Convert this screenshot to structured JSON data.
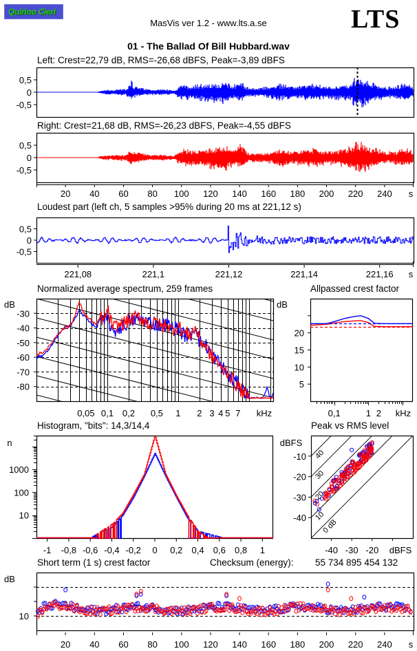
{
  "header": {
    "logo_text": "Quirino Cieri",
    "app_title": "MasVis ver 1.2 - www.lts.a.se",
    "brand": "LTS",
    "file_title": "01 - The Ballad Of Bill Hubbard.wav"
  },
  "colors": {
    "left": "#0000ff",
    "right": "#ff0000",
    "logo_bg": "#4a4fd0",
    "logo_text": "#27c227"
  },
  "chart_data": [
    {
      "id": "left-waveform",
      "type": "area",
      "title": "Left: Crest=22,79 dB, RMS=-26,68 dBFS, Peak=-3,89 dBFS",
      "xlabel": "s",
      "ylabel": "",
      "xlim": [
        0,
        260
      ],
      "ylim": [
        -1,
        1
      ],
      "yticks": [
        "0,5",
        "0",
        "-0,5"
      ],
      "yticks_values": [
        0.5,
        0,
        -0.5
      ],
      "marker_at_s": 221.12,
      "envelope": {
        "x": [
          0,
          42,
          46,
          55,
          62,
          65,
          67,
          72,
          80,
          88,
          95,
          100,
          106,
          112,
          120,
          126,
          131,
          136,
          140,
          145,
          152,
          160,
          168,
          176,
          184,
          192,
          200,
          208,
          216,
          220,
          224,
          230,
          236,
          242,
          248,
          252,
          256,
          260
        ],
        "upper": [
          0.02,
          0.02,
          0.08,
          0.1,
          0.12,
          0.45,
          0.25,
          0.18,
          0.1,
          0.12,
          0.06,
          0.3,
          0.25,
          0.28,
          0.32,
          0.35,
          0.4,
          0.25,
          0.45,
          0.18,
          0.16,
          0.2,
          0.3,
          0.22,
          0.28,
          0.3,
          0.22,
          0.25,
          0.3,
          0.55,
          0.5,
          0.35,
          0.28,
          0.2,
          0.22,
          0.3,
          0.28,
          0.2
        ],
        "lower": [
          -0.02,
          -0.02,
          -0.08,
          -0.1,
          -0.12,
          -0.3,
          -0.2,
          -0.15,
          -0.1,
          -0.12,
          -0.06,
          -0.3,
          -0.25,
          -0.3,
          -0.35,
          -0.4,
          -0.42,
          -0.25,
          -0.35,
          -0.18,
          -0.16,
          -0.2,
          -0.3,
          -0.22,
          -0.28,
          -0.3,
          -0.22,
          -0.28,
          -0.3,
          -0.55,
          -0.55,
          -0.35,
          -0.3,
          -0.2,
          -0.25,
          -0.3,
          -0.3,
          -0.2
        ]
      }
    },
    {
      "id": "right-waveform",
      "type": "area",
      "title": "Right: Crest=21,68 dB, RMS=-26,23 dBFS, Peak=-4,55 dBFS",
      "xlabel": "s",
      "ylabel": "",
      "xlim": [
        0,
        260
      ],
      "ylim": [
        -1,
        1
      ],
      "yticks": [
        "0,5",
        "0",
        "-0,5"
      ],
      "yticks_values": [
        0.5,
        0,
        -0.5
      ],
      "xticks": [
        "20",
        "40",
        "60",
        "80",
        "100",
        "120",
        "140",
        "160",
        "180",
        "200",
        "220",
        "240"
      ],
      "xticks_values": [
        20,
        40,
        60,
        80,
        100,
        120,
        140,
        160,
        180,
        200,
        220,
        240
      ],
      "envelope": {
        "x": [
          0,
          42,
          46,
          55,
          62,
          65,
          67,
          72,
          80,
          88,
          95,
          100,
          106,
          112,
          120,
          126,
          131,
          136,
          140,
          145,
          152,
          160,
          168,
          176,
          184,
          192,
          200,
          208,
          216,
          220,
          224,
          230,
          236,
          242,
          248,
          252,
          256,
          260
        ],
        "upper": [
          0.02,
          0.02,
          0.08,
          0.1,
          0.12,
          0.35,
          0.25,
          0.18,
          0.1,
          0.12,
          0.06,
          0.32,
          0.28,
          0.3,
          0.38,
          0.42,
          0.48,
          0.3,
          0.5,
          0.2,
          0.18,
          0.2,
          0.35,
          0.25,
          0.3,
          0.35,
          0.25,
          0.3,
          0.4,
          0.55,
          0.55,
          0.4,
          0.3,
          0.22,
          0.25,
          0.3,
          0.32,
          0.22
        ],
        "lower": [
          -0.02,
          -0.02,
          -0.08,
          -0.1,
          -0.12,
          -0.28,
          -0.2,
          -0.15,
          -0.1,
          -0.12,
          -0.06,
          -0.32,
          -0.28,
          -0.3,
          -0.4,
          -0.42,
          -0.45,
          -0.3,
          -0.4,
          -0.2,
          -0.18,
          -0.2,
          -0.35,
          -0.25,
          -0.3,
          -0.35,
          -0.25,
          -0.3,
          -0.4,
          -0.55,
          -0.6,
          -0.4,
          -0.3,
          -0.22,
          -0.25,
          -0.32,
          -0.32,
          -0.22
        ]
      }
    },
    {
      "id": "loudest-part",
      "type": "line",
      "title": "Loudest part (left  ch, 5 samples >95% during 20 ms at 221,12 s)",
      "xlabel": "s",
      "ylabel": "",
      "xlim": [
        221.069,
        221.169
      ],
      "ylim": [
        -1,
        1
      ],
      "yticks": [
        "0,5",
        "0",
        "-0,5"
      ],
      "yticks_values": [
        0.5,
        0,
        -0.5
      ],
      "xticks": [
        "221,08",
        "221,1",
        "221,12",
        "221,14",
        "221,16"
      ],
      "xticks_values": [
        221.08,
        221.1,
        221.12,
        221.14,
        221.16
      ],
      "features": {
        "quiet_amplitude": 0.12,
        "transient_at": 221.1198,
        "transient_peak": 0.62,
        "transient_trough": -0.55,
        "post_amplitude": 0.2
      }
    },
    {
      "id": "average-spectrum",
      "type": "line",
      "title": "Normalized average spectrum, 259 frames",
      "xlabel": "kHz",
      "ylabel": "dB",
      "xscale": "log",
      "xlim_khz": [
        0.01,
        22
      ],
      "ylim": [
        -90,
        -20
      ],
      "yticks": [
        "-30",
        "-40",
        "-50",
        "-60",
        "-70",
        "-80"
      ],
      "yticks_values": [
        -30,
        -40,
        -50,
        -60,
        -70,
        -80
      ],
      "xticks": [
        "0,05",
        "0,1",
        "0,2",
        "0,5",
        "1",
        "2",
        "3",
        "4",
        "5",
        "7",
        "kHz"
      ],
      "xticks_values": [
        0.05,
        0.1,
        0.2,
        0.5,
        1,
        2,
        3,
        4,
        5,
        7
      ],
      "series": [
        {
          "name": "left",
          "x": [
            0.01,
            0.012,
            0.015,
            0.02,
            0.025,
            0.03,
            0.035,
            0.04,
            0.045,
            0.05,
            0.06,
            0.07,
            0.08,
            0.09,
            0.1,
            0.12,
            0.15,
            0.2,
            0.25,
            0.3,
            0.4,
            0.5,
            0.6,
            0.7,
            0.8,
            1.0,
            1.2,
            1.5,
            1.8,
            2.0,
            2.5,
            3.0,
            3.5,
            4.0,
            5.0,
            6.0,
            7.0,
            8.0,
            9.0,
            10,
            14,
            16,
            18,
            20,
            22
          ],
          "y": [
            -60,
            -59,
            -55,
            -45,
            -40,
            -38,
            -34,
            -28,
            -31,
            -33,
            -37,
            -40,
            -33,
            -37,
            -33,
            -43,
            -40,
            -36,
            -34,
            -34,
            -36,
            -38,
            -38,
            -37,
            -40,
            -40,
            -45,
            -45,
            -38,
            -50,
            -52,
            -58,
            -62,
            -65,
            -72,
            -76,
            -78,
            -82,
            -84,
            -88,
            -88,
            -88,
            -81,
            -88,
            -85
          ]
        },
        {
          "name": "right",
          "x": [
            0.01,
            0.012,
            0.015,
            0.02,
            0.025,
            0.03,
            0.035,
            0.04,
            0.045,
            0.05,
            0.06,
            0.07,
            0.08,
            0.09,
            0.1,
            0.12,
            0.15,
            0.2,
            0.25,
            0.3,
            0.4,
            0.5,
            0.6,
            0.7,
            0.8,
            1.0,
            1.2,
            1.5,
            1.8,
            2.0,
            2.5,
            3.0,
            3.5,
            4.0,
            5.0,
            6.0,
            7.0,
            8.0,
            9.0,
            10,
            14,
            16,
            18,
            20,
            22
          ],
          "y": [
            -58,
            -57,
            -53,
            -44,
            -40,
            -38,
            -32,
            -22,
            -28,
            -32,
            -35,
            -38,
            -32,
            -36,
            -27,
            -40,
            -38,
            -35,
            -33,
            -33,
            -38,
            -36,
            -40,
            -36,
            -42,
            -38,
            -44,
            -44,
            -40,
            -48,
            -53,
            -60,
            -62,
            -68,
            -70,
            -76,
            -80,
            -83,
            -86,
            -88,
            -88,
            -88,
            -88,
            -88,
            -88
          ]
        }
      ]
    },
    {
      "id": "allpassed-crest-factor",
      "type": "line",
      "title": "Allpassed crest factor",
      "xlabel": "kHz",
      "ylabel": "dB",
      "xscale": "log",
      "xlim_khz": [
        0.02,
        20
      ],
      "ylim": [
        0,
        30
      ],
      "yticks": [
        "20",
        "15",
        "10",
        "5"
      ],
      "yticks_values": [
        20,
        15,
        10,
        5
      ],
      "xticks": [
        "0,1",
        "1",
        "2",
        "kHz"
      ],
      "xticks_values": [
        0.1,
        1,
        2
      ],
      "series": [
        {
          "name": "left",
          "x": [
            0.02,
            0.06,
            0.1,
            0.2,
            0.4,
            0.6,
            1.0,
            1.5,
            3,
            20
          ],
          "y": [
            22.7,
            22.7,
            23.3,
            24.2,
            24.8,
            25.0,
            24.2,
            22.8,
            22.7,
            22.7
          ]
        },
        {
          "name": "right",
          "x": [
            0.02,
            0.06,
            0.1,
            0.2,
            0.4,
            0.6,
            1.0,
            1.5,
            3,
            20
          ],
          "y": [
            22.2,
            22.5,
            22.9,
            23.3,
            23.5,
            23.6,
            23.0,
            21.9,
            21.8,
            21.8
          ]
        },
        {
          "name": "left-full-band",
          "style": "dashed",
          "y_const": 22.79
        },
        {
          "name": "right-full-band",
          "style": "dashed",
          "y_const": 21.68
        }
      ]
    },
    {
      "id": "histogram",
      "type": "line",
      "title": "Histogram, \"bits\": 14,3/14,4",
      "xlabel": "",
      "ylabel": "n",
      "yscale": "log",
      "xlim": [
        -1.1,
        1.1
      ],
      "ylim": [
        1,
        30000
      ],
      "yticks": [
        "1000",
        "100",
        "10"
      ],
      "yticks_values": [
        1000,
        100,
        10
      ],
      "xticks": [
        "-1",
        "-0,8",
        "-0,6",
        "-0,4",
        "-0,2",
        "0",
        "0,2",
        "0,4",
        "0,6",
        "0,8",
        "1"
      ],
      "xticks_values": [
        -1,
        -0.8,
        -0.6,
        -0.4,
        -0.2,
        0,
        0.2,
        0.4,
        0.6,
        0.8,
        1
      ],
      "bits": {
        "left": 14.3,
        "right": 14.4
      },
      "series": [
        {
          "name": "left",
          "x": [
            -0.6,
            -0.5,
            -0.4,
            -0.3,
            -0.2,
            -0.1,
            0,
            0.1,
            0.2,
            0.3,
            0.4,
            0.5,
            0.64
          ],
          "y": [
            1,
            2,
            3,
            10,
            60,
            500,
            5000,
            500,
            60,
            8,
            2,
            1.5,
            1
          ]
        },
        {
          "name": "right",
          "x": [
            -0.58,
            -0.5,
            -0.4,
            -0.3,
            -0.2,
            -0.1,
            0,
            0.1,
            0.2,
            0.3,
            0.4,
            0.5,
            0.56
          ],
          "y": [
            1,
            2,
            4,
            12,
            80,
            600,
            30000,
            600,
            70,
            10,
            2,
            1,
            1
          ]
        }
      ]
    },
    {
      "id": "peak-vs-rms",
      "type": "scatter",
      "title": "Peak vs RMS level",
      "xlabel": "dBFS",
      "ylabel": "dBFS",
      "xlim": [
        -50,
        0
      ],
      "ylim": [
        -50,
        0
      ],
      "xticks": [
        "-40",
        "-30",
        "-20",
        "dBFS"
      ],
      "xticks_values": [
        -40,
        -30,
        -20
      ],
      "yticks": [
        "-10",
        "-20",
        "-30",
        "-40"
      ],
      "yticks_values": [
        -10,
        -20,
        -30,
        -40
      ],
      "crest_lines_db": [
        0,
        10,
        20,
        30,
        40
      ],
      "crest_labels": [
        "0 dB",
        "10",
        "20",
        "30",
        "40"
      ],
      "cluster": {
        "rms_range": [
          -49,
          -20
        ],
        "crest_center_db": 14,
        "crest_spread_db": 3,
        "count_per_channel": 259
      },
      "outliers_left": [
        [
          -30,
          -7
        ],
        [
          -48,
          -33
        ],
        [
          -46,
          -36
        ]
      ]
    },
    {
      "id": "short-term-crest",
      "type": "scatter",
      "title": "Short term (1 s) crest factor",
      "xlabel": "s",
      "ylabel": "dB",
      "xlim": [
        0,
        260
      ],
      "ylim": [
        5,
        25
      ],
      "yticks": [
        "10"
      ],
      "yticks_values": [
        10
      ],
      "dashed_lines_db": [
        10,
        20
      ],
      "xticks": [
        "20",
        "40",
        "60",
        "80",
        "100",
        "120",
        "140",
        "160",
        "180",
        "200",
        "220",
        "240"
      ],
      "xticks_values": [
        20,
        40,
        60,
        80,
        100,
        120,
        140,
        160,
        180,
        200,
        220,
        240
      ],
      "typical_range_db": [
        10,
        16
      ],
      "outliers": {
        "left": [
          [
            20,
            19
          ],
          [
            69,
            17
          ],
          [
            72,
            17.5
          ],
          [
            131,
            17
          ],
          [
            201,
            21
          ],
          [
            226,
            16.5
          ]
        ],
        "right": [
          [
            69,
            17.5
          ],
          [
            72,
            18.5
          ],
          [
            131,
            17.5
          ],
          [
            140,
            16
          ],
          [
            201,
            19
          ],
          [
            217,
            16
          ]
        ]
      }
    }
  ],
  "checksum": {
    "label": "Checksum (energy):",
    "value": "55 734 895 454 132"
  }
}
